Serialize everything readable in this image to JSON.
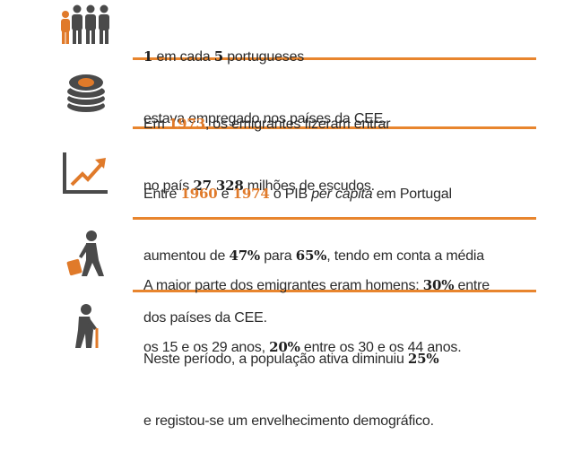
{
  "items": [
    {
      "lines": [
        [
          "1",
          " em cada ",
          "5",
          " portugueses"
        ],
        [
          "estava empregado nos países da CEE."
        ]
      ]
    },
    {
      "lines": [
        [
          "Em ",
          "1973",
          ", os emigrantes fizeram entrar"
        ],
        [
          "no país ",
          "27 328",
          " milhões de escudos."
        ]
      ]
    },
    {
      "lines": [
        [
          "Entre ",
          "1960",
          " e ",
          "1974",
          " o PIB ",
          "per capita",
          " em Portugal"
        ],
        [
          "aumentou de ",
          "47%",
          " para ",
          "65%",
          ", tendo em conta a média"
        ],
        [
          "dos países da CEE."
        ]
      ]
    },
    {
      "lines": [
        [
          "A maior parte dos emigrantes eram homens: ",
          "30%",
          " entre"
        ],
        [
          "os 15 e os 29 anos, ",
          "20%",
          " entre os 30 e os 44 anos."
        ]
      ]
    },
    {
      "lines": [
        [
          "Neste período, a população ativa diminuiu ",
          "25%"
        ],
        [
          "e registou-se um envelhecimento demográfico."
        ]
      ]
    }
  ]
}
